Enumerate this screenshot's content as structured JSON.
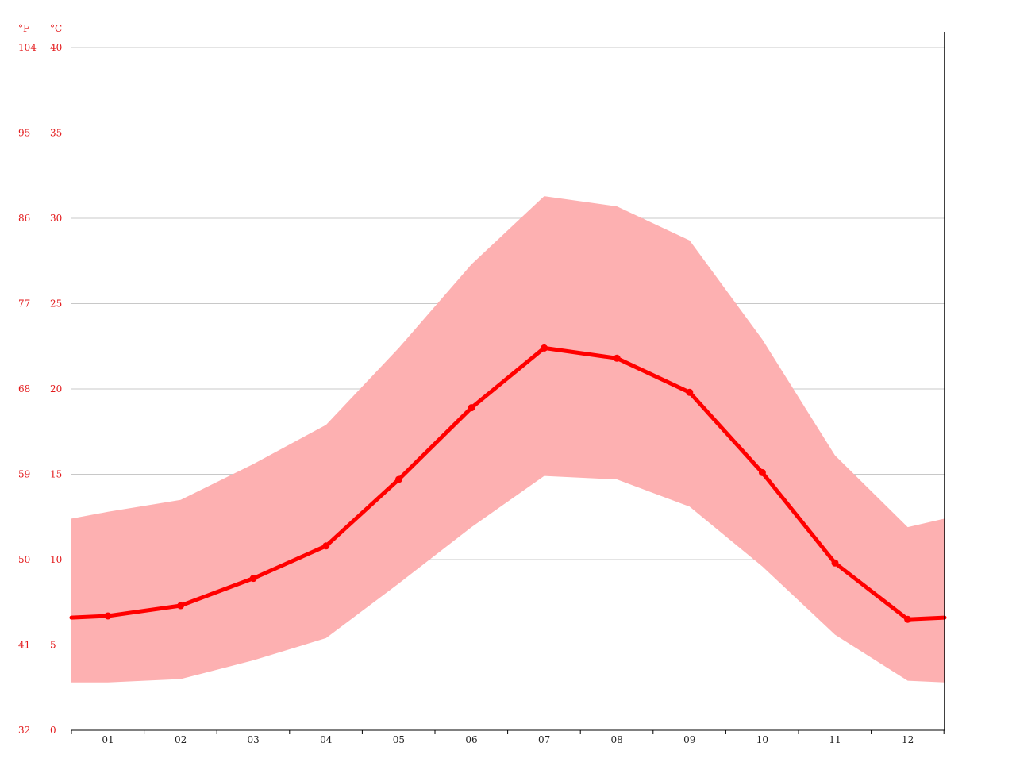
{
  "colors": {
    "line": "#ff0000",
    "range_fill": "#fdb0b1",
    "grid": "#c8c8c8",
    "axis": "#000000",
    "y_label": "#e31a1c",
    "x_label": "#222222"
  },
  "units": {
    "fahrenheit": "°F",
    "celsius": "°C"
  },
  "chart_data": {
    "type": "area",
    "categories": [
      "01",
      "02",
      "03",
      "04",
      "05",
      "06",
      "07",
      "08",
      "09",
      "10",
      "11",
      "12"
    ],
    "ylim": [
      0,
      40
    ],
    "grid": true,
    "y_ticks_celsius": [
      "0",
      "5",
      "10",
      "15",
      "20",
      "25",
      "30",
      "35",
      "40"
    ],
    "y_ticks_fahrenheit": [
      "32",
      "41",
      "50",
      "59",
      "68",
      "77",
      "86",
      "95",
      "104"
    ],
    "series": [
      {
        "type": "line",
        "values": [
          6.7,
          7.3,
          8.9,
          10.8,
          14.7,
          18.9,
          22.4,
          21.8,
          19.8,
          15.1,
          9.8,
          6.5
        ]
      },
      {
        "type": "range",
        "min": [
          2.8,
          3.0,
          4.1,
          5.4,
          8.6,
          11.9,
          14.9,
          14.7,
          13.1,
          9.6,
          5.6,
          2.9
        ],
        "max": [
          12.8,
          13.5,
          15.6,
          17.9,
          22.4,
          27.3,
          31.3,
          30.7,
          28.7,
          22.9,
          16.1,
          11.9
        ]
      }
    ],
    "edge_values": {
      "line_start": 6.6,
      "line_end": 6.6,
      "min_start": 2.8,
      "min_end": 2.8,
      "max_start": 12.4,
      "max_end": 12.4
    }
  }
}
